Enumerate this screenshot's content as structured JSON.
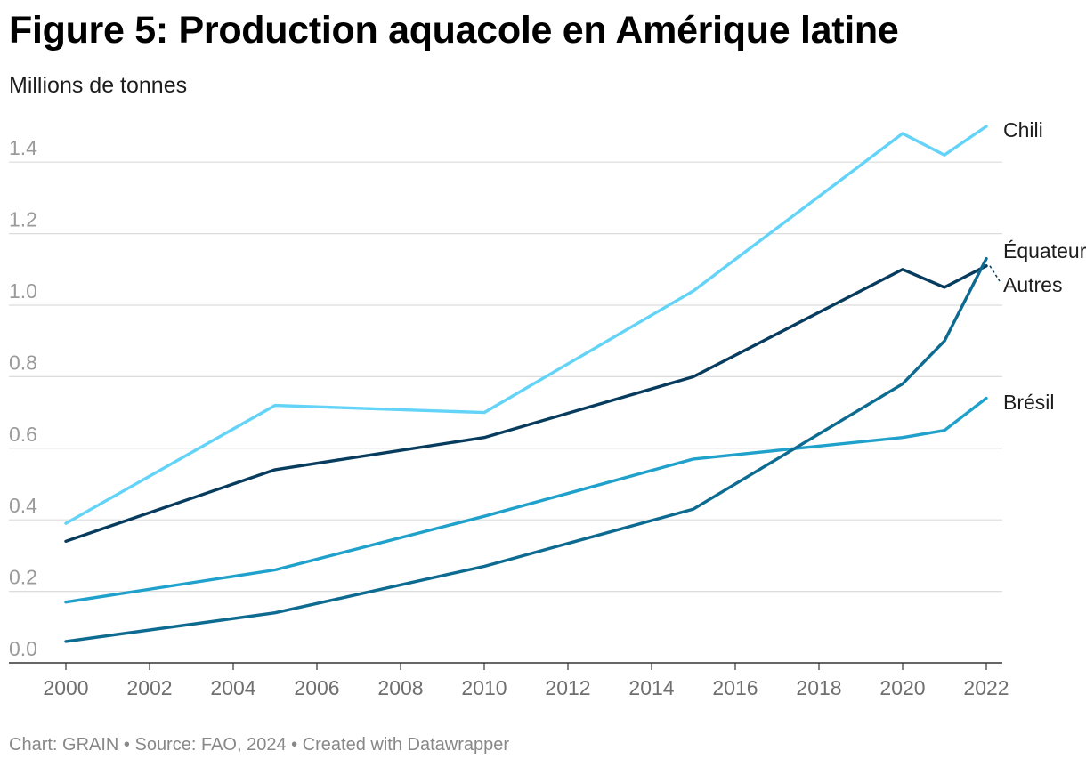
{
  "page": {
    "title": "Figure 5: Production aquacole en Amérique latine",
    "subtitle": "Millions de tonnes",
    "footer": "Chart: GRAIN • Source: FAO, 2024 • Created with Datawrapper"
  },
  "chart_data": {
    "type": "line",
    "title": "Figure 5: Production aquacole en Amérique latine",
    "ylabel": "Millions de tonnes",
    "xlabel": "",
    "x": [
      2000,
      2005,
      2010,
      2015,
      2020,
      2021,
      2022
    ],
    "xlim": [
      2000,
      2022
    ],
    "ylim": [
      0.0,
      1.5
    ],
    "x_ticks": [
      "2000",
      "2002",
      "2004",
      "2006",
      "2008",
      "2010",
      "2012",
      "2014",
      "2016",
      "2018",
      "2020",
      "2022"
    ],
    "y_ticks": [
      "0.0",
      "0.2",
      "0.4",
      "0.6",
      "0.8",
      "1.0",
      "1.2",
      "1.4"
    ],
    "grid": true,
    "series": [
      {
        "name": "Chili",
        "color": "#63d3f7",
        "values": [
          0.39,
          0.72,
          0.7,
          1.04,
          1.48,
          1.42,
          1.5
        ]
      },
      {
        "name": "Autres",
        "color": "#073c5e",
        "values": [
          0.34,
          0.54,
          0.63,
          0.8,
          1.1,
          1.05,
          1.11
        ]
      },
      {
        "name": "Équateur",
        "color": "#0d6b91",
        "values": [
          0.06,
          0.14,
          0.27,
          0.43,
          0.78,
          0.9,
          1.13
        ]
      },
      {
        "name": "Brésil",
        "color": "#1fa1cb",
        "values": [
          0.17,
          0.26,
          0.41,
          0.57,
          0.63,
          0.65,
          0.74
        ]
      }
    ]
  }
}
